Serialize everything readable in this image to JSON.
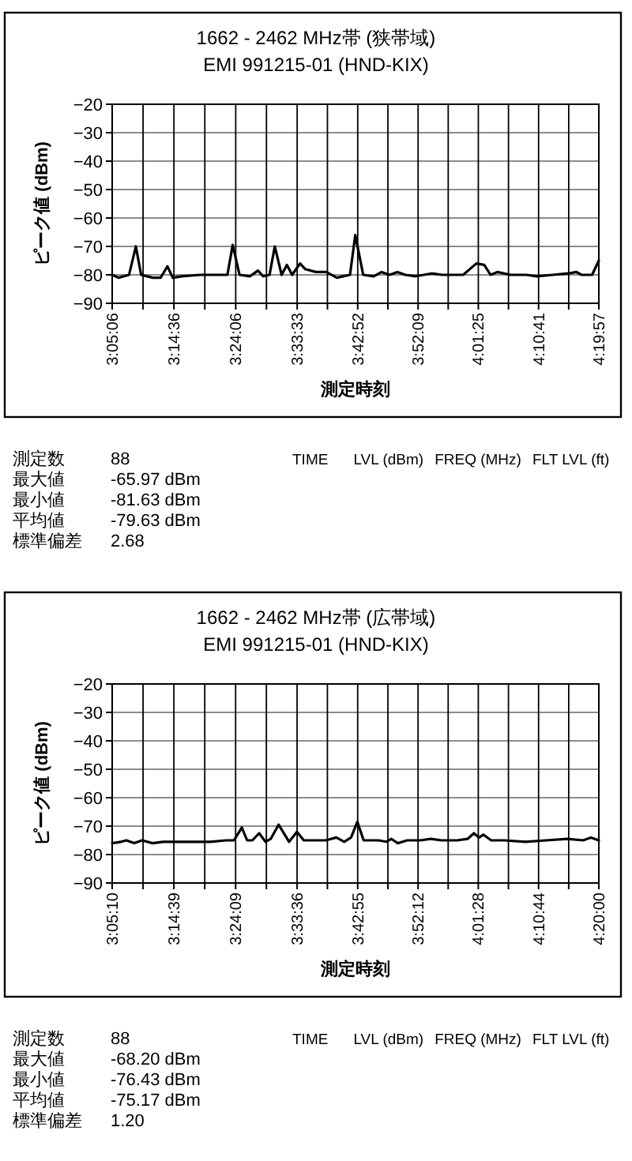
{
  "chart_data": [
    {
      "type": "line",
      "title": "1662 - 2462 MHz帯 (狭帯域)",
      "subtitle": "EMI 991215-01 (HND-KIX)",
      "xlabel": "測定時刻",
      "ylabel": "ピーク値 (dBm)",
      "x": [
        3.085,
        3.1012,
        3.1282,
        3.1457,
        3.1592,
        3.1889,
        3.2091,
        3.2266,
        3.2401,
        3.2631,
        3.3103,
        3.3642,
        3.3804,
        3.3939,
        3.4115,
        3.4384,
        3.4587,
        3.4722,
        3.4884,
        3.5018,
        3.5194,
        3.5329,
        3.5463,
        3.5666,
        3.5801,
        3.6071,
        3.634,
        3.661,
        3.6947,
        3.7082,
        3.7285,
        3.7555,
        3.7757,
        3.7959,
        3.8162,
        3.8364,
        3.8634,
        3.9039,
        3.9308,
        3.9848,
        4.0185,
        4.0387,
        4.0549,
        4.0725,
        4.09,
        4.1062,
        4.1467,
        4.1736,
        4.2141,
        4.2546,
        4.2748,
        4.2883,
        4.3153,
        4.3325
      ],
      "series": [
        {
          "color": "#000000",
          "values": [
            -80,
            -81,
            -80,
            -70,
            -80,
            -81,
            -81,
            -77,
            -81,
            -80.5,
            -80,
            -80,
            -80,
            -69.5,
            -80,
            -80.5,
            -78.5,
            -80.5,
            -80,
            -70,
            -80,
            -76.5,
            -80,
            -76,
            -78,
            -79,
            -79,
            -81,
            -80,
            -66,
            -80,
            -80.5,
            -79,
            -80,
            -79,
            -80,
            -80.5,
            -79.5,
            -80,
            -80,
            -76,
            -76.5,
            -80,
            -79,
            -79.5,
            -80,
            -80,
            -80.5,
            -80,
            -79.5,
            -79,
            -80,
            -80,
            -75
          ]
        }
      ],
      "xlim": [
        3.085,
        4.3325
      ],
      "ylim": [
        -90,
        -20
      ],
      "yticks": [
        -90,
        -80,
        -70,
        -60,
        -50,
        -40,
        -30,
        -20
      ],
      "xticks": [
        {
          "value": 3.085,
          "label": "3:05:06"
        },
        {
          "value": 3.1642,
          "label": null
        },
        {
          "value": 3.2433,
          "label": "3:14:36"
        },
        {
          "value": 3.3225,
          "label": null
        },
        {
          "value": 3.4017,
          "label": "3:24:06"
        },
        {
          "value": 3.4805,
          "label": null
        },
        {
          "value": 3.5592,
          "label": "3:33:33"
        },
        {
          "value": 3.6368,
          "label": null
        },
        {
          "value": 3.7144,
          "label": "3:42:52"
        },
        {
          "value": 3.7918,
          "label": null
        },
        {
          "value": 3.8692,
          "label": "3:52:09"
        },
        {
          "value": 3.9464,
          "label": null
        },
        {
          "value": 4.0236,
          "label": "4:01:25"
        },
        {
          "value": 4.1009,
          "label": null
        },
        {
          "value": 4.1781,
          "label": "4:10:41"
        },
        {
          "value": 4.2553,
          "label": null
        },
        {
          "value": 4.3325,
          "label": "4:19:57"
        }
      ],
      "grid": true,
      "line_style": "solid",
      "annotations": [
        "測定数 88",
        "最大値 -65.97 dBm",
        "最小値 -81.63 dBm",
        "平均値 -79.63 dBm",
        "標準偏差 2.68",
        "TIME",
        "LVL (dBm)",
        "FREQ (MHz)",
        "FLT LVL (ft)"
      ]
    },
    {
      "type": "line",
      "title": "1662 - 2462 MHz帯 (広帯域)",
      "subtitle": "EMI 991215-01 (HND-KIX)",
      "xlabel": "測定時刻",
      "ylabel": "ピーク値 (dBm)",
      "x": [
        3.0861,
        3.109,
        3.1224,
        3.1426,
        3.1628,
        3.1897,
        3.2166,
        3.2435,
        3.2839,
        3.3377,
        3.3781,
        3.3982,
        3.4184,
        3.4319,
        3.4453,
        3.4628,
        3.479,
        3.4924,
        3.5126,
        3.5395,
        3.5597,
        3.5772,
        3.6068,
        3.6337,
        3.6606,
        3.6808,
        3.6983,
        3.7144,
        3.7306,
        3.7683,
        3.7884,
        3.8019,
        3.818,
        3.8422,
        3.8758,
        3.9028,
        3.9297,
        3.97,
        3.9969,
        4.0131,
        4.0265,
        4.0373,
        4.0575,
        4.0911,
        4.1449,
        4.1987,
        4.2525,
        4.2929,
        4.3131,
        4.3333
      ],
      "series": [
        {
          "color": "#000000",
          "values": [
            -76,
            -75.5,
            -75,
            -76,
            -75,
            -76,
            -75.5,
            -75.5,
            -75.5,
            -75.5,
            -75,
            -75,
            -70.5,
            -75,
            -75,
            -72.5,
            -75.5,
            -74.5,
            -69.5,
            -75.5,
            -72,
            -75,
            -75,
            -75,
            -74,
            -75.5,
            -74,
            -68.5,
            -75,
            -75,
            -75.5,
            -74.5,
            -76,
            -75,
            -75,
            -74.5,
            -75,
            -75,
            -74.5,
            -72.5,
            -74,
            -73,
            -75,
            -75,
            -75.5,
            -75,
            -74.5,
            -75,
            -74,
            -75
          ]
        }
      ],
      "xlim": [
        3.0861,
        4.3333
      ],
      "ylim": [
        -90,
        -20
      ],
      "yticks": [
        -90,
        -80,
        -70,
        -60,
        -50,
        -40,
        -30,
        -20
      ],
      "xticks": [
        {
          "value": 3.0861,
          "label": "3:05:10"
        },
        {
          "value": 3.1652,
          "label": null
        },
        {
          "value": 3.2442,
          "label": "3:14:39"
        },
        {
          "value": 3.3234,
          "label": null
        },
        {
          "value": 3.4025,
          "label": "3:24:09"
        },
        {
          "value": 3.4813,
          "label": null
        },
        {
          "value": 3.56,
          "label": "3:33:36"
        },
        {
          "value": 3.6377,
          "label": null
        },
        {
          "value": 3.7153,
          "label": "3:42:55"
        },
        {
          "value": 3.7927,
          "label": null
        },
        {
          "value": 3.87,
          "label": "3:52:12"
        },
        {
          "value": 3.9472,
          "label": null
        },
        {
          "value": 4.0244,
          "label": "4:01:28"
        },
        {
          "value": 4.1017,
          "label": null
        },
        {
          "value": 4.1789,
          "label": "4:10:44"
        },
        {
          "value": 4.2561,
          "label": null
        },
        {
          "value": 4.3333,
          "label": "4:20:00"
        }
      ],
      "grid": true,
      "line_style": "solid",
      "annotations": [
        "測定数 88",
        "最大値 -68.20 dBm",
        "最小値 -76.43 dBm",
        "平均値 -75.17 dBm",
        "標準偏差 1.20",
        "TIME",
        "LVL (dBm)",
        "FREQ (MHz)",
        "FLT LVL (ft)"
      ]
    }
  ]
}
